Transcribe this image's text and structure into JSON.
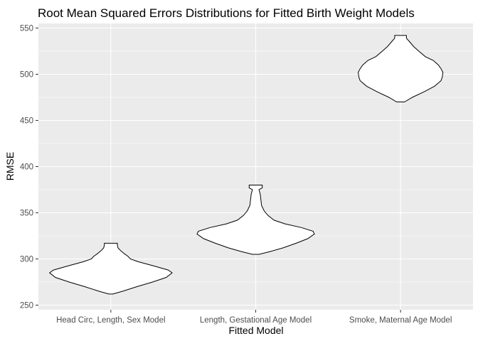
{
  "chart_data": {
    "type": "violin",
    "title": "Root Mean Squared Errors Distributions for Fitted Birth Weight Models",
    "xlabel": "Fitted Model",
    "ylabel": "RMSE",
    "categories": [
      "Head Circ, Length, Sex Model",
      "Length, Gestational Age Model",
      "Smoke, Maternal Age Model"
    ],
    "ylim": [
      245,
      555
    ],
    "yticks": [
      250,
      300,
      350,
      400,
      450,
      500,
      550
    ],
    "grid": true,
    "violins": [
      {
        "category": "Head Circ, Length, Sex Model",
        "min": 262,
        "max": 317,
        "profile": [
          [
            262,
            0.03
          ],
          [
            265,
            0.18
          ],
          [
            270,
            0.4
          ],
          [
            275,
            0.64
          ],
          [
            280,
            0.85
          ],
          [
            285,
            0.94
          ],
          [
            288,
            0.88
          ],
          [
            292,
            0.68
          ],
          [
            297,
            0.42
          ],
          [
            300,
            0.3
          ],
          [
            303,
            0.26
          ],
          [
            306,
            0.2
          ],
          [
            309,
            0.15
          ],
          [
            312,
            0.11
          ],
          [
            315,
            0.1
          ],
          [
            317,
            0.1
          ]
        ]
      },
      {
        "category": "Length, Gestational Age Model",
        "min": 305,
        "max": 380,
        "profile": [
          [
            305,
            0.05
          ],
          [
            308,
            0.22
          ],
          [
            312,
            0.42
          ],
          [
            317,
            0.62
          ],
          [
            322,
            0.8
          ],
          [
            327,
            0.9
          ],
          [
            330,
            0.88
          ],
          [
            334,
            0.7
          ],
          [
            338,
            0.45
          ],
          [
            342,
            0.28
          ],
          [
            347,
            0.19
          ],
          [
            352,
            0.13
          ],
          [
            358,
            0.09
          ],
          [
            364,
            0.08
          ],
          [
            370,
            0.07
          ],
          [
            375,
            0.05
          ],
          [
            377,
            0.1
          ],
          [
            380,
            0.1
          ]
        ]
      },
      {
        "category": "Smoke, Maternal Age Model",
        "min": 470,
        "max": 542,
        "profile": [
          [
            470,
            0.06
          ],
          [
            475,
            0.18
          ],
          [
            481,
            0.36
          ],
          [
            487,
            0.52
          ],
          [
            493,
            0.62
          ],
          [
            497,
            0.64
          ],
          [
            502,
            0.65
          ],
          [
            506,
            0.62
          ],
          [
            510,
            0.58
          ],
          [
            515,
            0.5
          ],
          [
            519,
            0.38
          ],
          [
            525,
            0.28
          ],
          [
            530,
            0.2
          ],
          [
            535,
            0.14
          ],
          [
            539,
            0.09
          ],
          [
            542,
            0.09
          ]
        ]
      }
    ]
  }
}
